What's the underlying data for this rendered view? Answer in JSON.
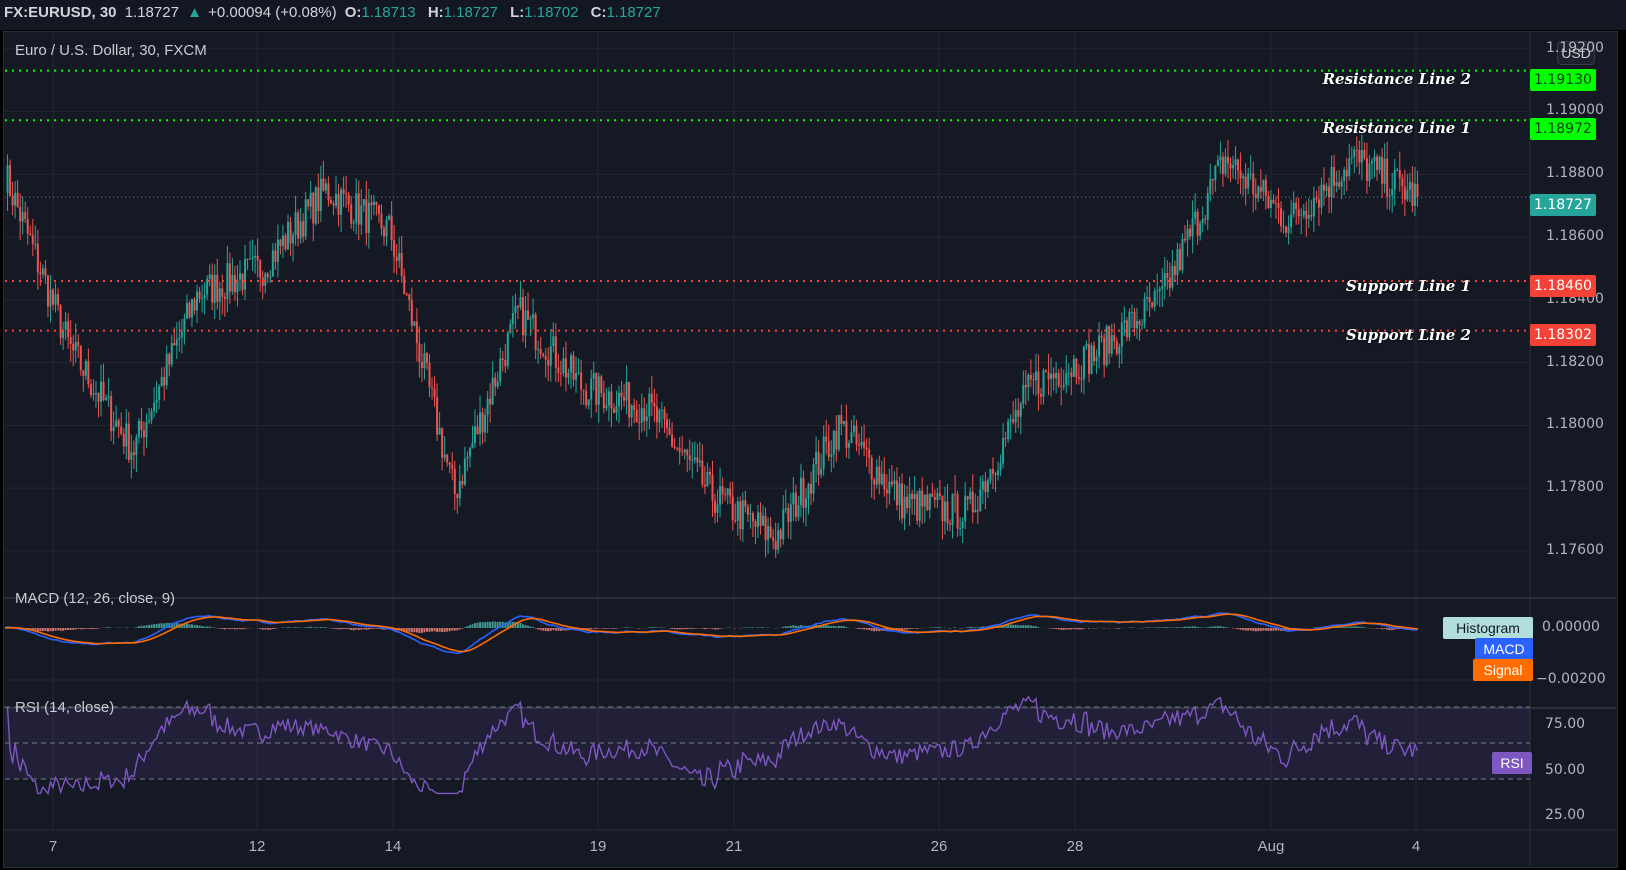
{
  "header": {
    "symbol": "FX:EURUSD, 30",
    "last": "1.18727",
    "change": "+0.00094 (+0.08%)",
    "open_label": "O:",
    "open": "1.18713",
    "high_label": "H:",
    "high": "1.18727",
    "low_label": "L:",
    "low": "1.18702",
    "close_label": "C:",
    "close": "1.18727",
    "direction_icon": "triangle-up-icon"
  },
  "main_pane": {
    "title": "Euro / U.S. Dollar, 30, FXCM",
    "currency_button": "USD",
    "price_ticks": [
      "1.19200",
      "1.19000",
      "1.18800",
      "1.18600",
      "1.18400",
      "1.18200",
      "1.18000",
      "1.17800",
      "1.17600"
    ],
    "current_price_tag": "1.18727",
    "lines": [
      {
        "label": "Resistance Line 2",
        "value": "1.19130",
        "color": "#00ff00"
      },
      {
        "label": "Resistance Line 1",
        "value": "1.18972",
        "color": "#00ff00"
      },
      {
        "label": "Support Line 1",
        "value": "1.18460",
        "color": "#f44336"
      },
      {
        "label": "Support Line 2",
        "value": "1.18302",
        "color": "#f44336"
      }
    ]
  },
  "macd_pane": {
    "title": "MACD (12, 26, close, 9)",
    "ticks": [
      "0.00000",
      "−0.00200"
    ],
    "tags": {
      "histogram": "Histogram",
      "macd": "MACD",
      "signal": "Signal"
    }
  },
  "rsi_pane": {
    "title": "RSI (14, close)",
    "ticks": [
      "75.00",
      "50.00",
      "25.00"
    ],
    "tag": "RSI"
  },
  "x_axis": {
    "labels": [
      "7",
      "12",
      "14",
      "19",
      "21",
      "26",
      "28",
      "Aug",
      "4"
    ]
  },
  "colors": {
    "up": "#26a69a",
    "down": "#ef5350",
    "macd": "#2962ff",
    "signal": "#ff6d00",
    "rsi": "#7e57c2",
    "resistance": "#00ff00",
    "support": "#f44336"
  },
  "chart_data": {
    "type": "candlestick",
    "title": "Euro / U.S. Dollar, 30, FXCM",
    "xlabel": "",
    "ylabel": "USD",
    "ylim": [
      1.1745,
      1.1925
    ],
    "x_labels": [
      "7",
      "12",
      "14",
      "19",
      "21",
      "26",
      "28",
      "Aug",
      "4"
    ],
    "approx_close_path": {
      "x": [
        "Jul 6",
        "7",
        "8",
        "9",
        "10",
        "12",
        "13",
        "14",
        "15",
        "16",
        "19",
        "20",
        "21",
        "22",
        "23",
        "26",
        "27",
        "28",
        "29",
        "30",
        "Aug 2",
        "3",
        "4"
      ],
      "close": [
        1.188,
        1.1825,
        1.1792,
        1.1842,
        1.185,
        1.1875,
        1.1862,
        1.1778,
        1.1836,
        1.1812,
        1.1806,
        1.1778,
        1.1764,
        1.18,
        1.1775,
        1.1772,
        1.1813,
        1.1823,
        1.184,
        1.1885,
        1.1865,
        1.1885,
        1.18727
      ]
    },
    "horizontal_lines": [
      {
        "name": "Resistance Line 2",
        "y": 1.1913
      },
      {
        "name": "Resistance Line 1",
        "y": 1.18972
      },
      {
        "name": "Support Line 1",
        "y": 1.1846
      },
      {
        "name": "Support Line 2",
        "y": 1.18302
      }
    ],
    "last_price": 1.18727,
    "indicators": [
      {
        "name": "MACD (12, 26, close, 9)",
        "series": [
          "Histogram",
          "MACD",
          "Signal"
        ],
        "ylim": [
          -0.0025,
          0.0015
        ],
        "ticks": [
          0.0,
          -0.002
        ]
      },
      {
        "name": "RSI (14, close)",
        "series": [
          "RSI"
        ],
        "ylim": [
          20,
          80
        ],
        "ticks": [
          75,
          50,
          25
        ],
        "bands": [
          70,
          30
        ]
      }
    ]
  }
}
